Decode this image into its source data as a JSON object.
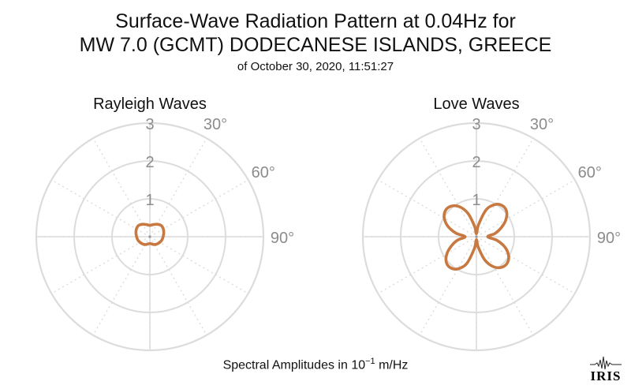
{
  "title": {
    "line1": "Surface-Wave Radiation Pattern at 0.04Hz for",
    "line2": "MW 7.0 (GCMT) DODECANESE ISLANDS, GREECE",
    "subtitle": "of October 30, 2020, 11:51:27"
  },
  "footer": {
    "prefix": "Spectral Amplitudes in ",
    "base": "10",
    "exponent": "−1",
    "unit": " m/Hz"
  },
  "logo": {
    "text": "IRIS"
  },
  "colors": {
    "curve": "#c87941",
    "grid": "#dcdcdc",
    "label": "#8c8c8c"
  },
  "chart_data": [
    {
      "type": "polar-line",
      "title": "Rayleigh Waves",
      "r_ticks": [
        "1",
        "2",
        "3"
      ],
      "r_max": 3,
      "theta_ticks": [
        "30°",
        "60°",
        "90°"
      ],
      "theta_unit": "degrees",
      "series": [
        {
          "theta": [
            0,
            15,
            30,
            45,
            60,
            75,
            90,
            105,
            120,
            135,
            150,
            165,
            180,
            195,
            210,
            225,
            240,
            255,
            270,
            285,
            300,
            315,
            330,
            345
          ],
          "r": [
            0.3,
            0.33,
            0.38,
            0.42,
            0.41,
            0.38,
            0.35,
            0.33,
            0.3,
            0.27,
            0.24,
            0.2,
            0.18,
            0.2,
            0.24,
            0.27,
            0.3,
            0.33,
            0.35,
            0.38,
            0.41,
            0.42,
            0.38,
            0.33
          ]
        }
      ]
    },
    {
      "type": "polar-line",
      "title": "Love Waves",
      "r_ticks": [
        "1",
        "2",
        "3"
      ],
      "r_max": 3,
      "theta_ticks": [
        "30°",
        "60°",
        "90°"
      ],
      "theta_unit": "degrees",
      "series": [
        {
          "theta": [
            0,
            10,
            20,
            30,
            40,
            50,
            60,
            70,
            80,
            90,
            100,
            110,
            120,
            130,
            140,
            150,
            160,
            170,
            180,
            190,
            200,
            210,
            220,
            230,
            240,
            250,
            260,
            270,
            280,
            290,
            300,
            310,
            320,
            330,
            340,
            350
          ],
          "r": [
            0.08,
            0.32,
            0.76,
            0.98,
            1.07,
            1.04,
            0.9,
            0.7,
            0.5,
            0.3,
            0.55,
            0.8,
            0.98,
            1.07,
            1.05,
            0.92,
            0.66,
            0.28,
            0.08,
            0.32,
            0.76,
            0.98,
            1.07,
            1.04,
            0.9,
            0.7,
            0.5,
            0.3,
            0.55,
            0.8,
            0.98,
            1.07,
            1.05,
            0.92,
            0.66,
            0.28
          ]
        }
      ]
    }
  ]
}
